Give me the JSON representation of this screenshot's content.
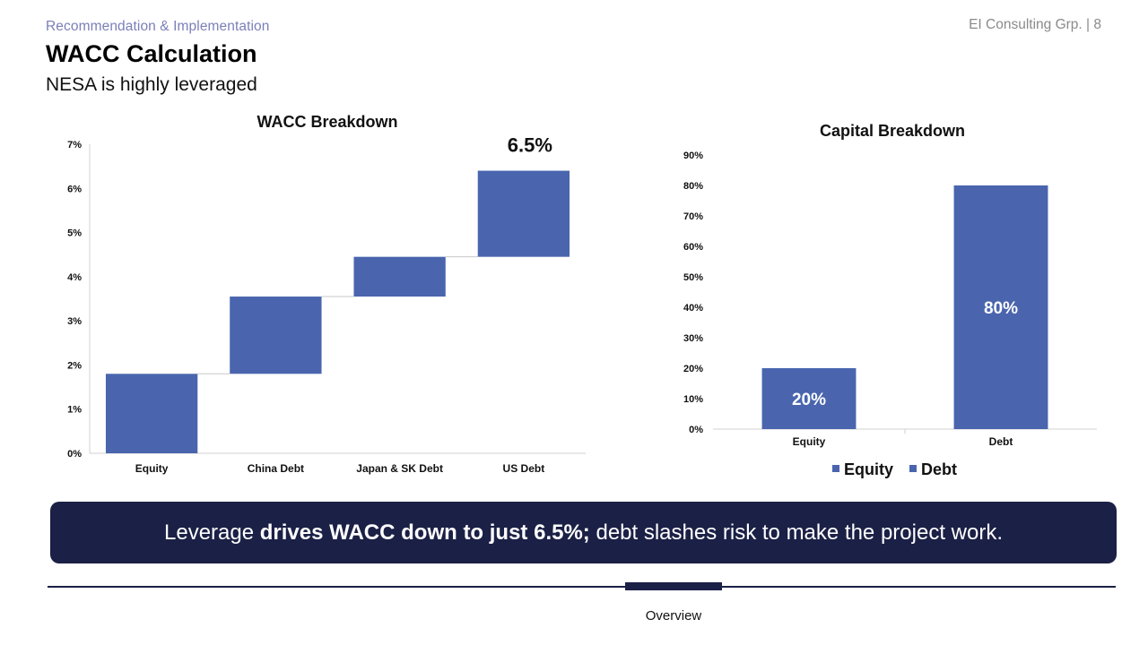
{
  "header": {
    "section": "Recommendation & Implementation",
    "brand_page": "EI Consulting Grp. | 8",
    "title": "WACC Calculation",
    "subtitle": "NESA is highly leveraged"
  },
  "colors": {
    "bar": "#4a65ae",
    "navy": "#1b2046",
    "axis": "#d0d0d0"
  },
  "chart_data": [
    {
      "type": "waterfall",
      "title": "WACC Breakdown",
      "categories": [
        "Equity",
        "China Debt",
        "Japan & SK Debt",
        "US Debt"
      ],
      "values": [
        1.8,
        1.75,
        0.9,
        1.95
      ],
      "total_label": "6.5%",
      "ylim": [
        0,
        7
      ],
      "yticks": [
        "0%",
        "1%",
        "2%",
        "3%",
        "4%",
        "5%",
        "6%",
        "7%"
      ],
      "grid": false
    },
    {
      "type": "bar",
      "title": "Capital Breakdown",
      "categories": [
        "Equity",
        "Debt"
      ],
      "values": [
        20,
        80
      ],
      "data_labels": [
        "20%",
        "80%"
      ],
      "ylim": [
        0,
        90
      ],
      "yticks": [
        "0%",
        "10%",
        "20%",
        "30%",
        "40%",
        "50%",
        "60%",
        "70%",
        "80%",
        "90%"
      ],
      "legend": [
        "Equity",
        "Debt"
      ],
      "legend_position": "bottom",
      "grid": false
    }
  ],
  "callout": {
    "pre": "Leverage ",
    "bold": "drives WACC down to just 6.5%;",
    "post": " debt slashes risk to make the project work."
  },
  "footer": {
    "nav_label": "Overview"
  }
}
